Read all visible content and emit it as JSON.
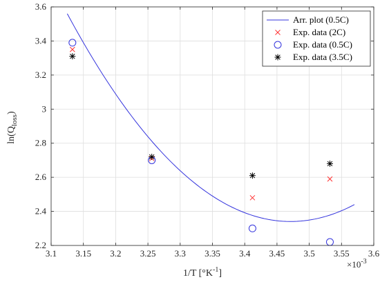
{
  "chart_data": {
    "type": "scatter",
    "xlabel": "1/T [°K",
    "xlabel_sup": "-1",
    "xlabel_end": "]",
    "ylabel": "ln(Q",
    "ylabel_sub": "loss",
    "ylabel_end": ")",
    "x_exponent_base": "×10",
    "x_exponent_power": "-3",
    "xlim": [
      3.1,
      3.6
    ],
    "ylim": [
      2.2,
      3.6
    ],
    "x_ticks": [
      3.1,
      3.15,
      3.2,
      3.25,
      3.3,
      3.35,
      3.4,
      3.45,
      3.5,
      3.55,
      3.6
    ],
    "x_tick_labels": [
      "3.1",
      "3.15",
      "3.2",
      "3.25",
      "3.3",
      "3.35",
      "3.4",
      "3.45",
      "3.5",
      "3.55",
      "3.6"
    ],
    "y_ticks": [
      2.2,
      2.4,
      2.6,
      2.8,
      3.0,
      3.2,
      3.4,
      3.6
    ],
    "y_tick_labels": [
      "2.2",
      "2.4",
      "2.6",
      "2.8",
      "3",
      "3.2",
      "3.4",
      "3.6"
    ],
    "grid": true,
    "legend_position": "top-right",
    "series": [
      {
        "name": "Arr. plot (0.5C)",
        "kind": "line",
        "color": "#3333dd",
        "quadratic_through": [
          [
            3.125,
            3.56
          ],
          [
            3.35,
            2.49
          ],
          [
            3.57,
            2.44
          ]
        ],
        "x_range": [
          3.125,
          3.57
        ]
      },
      {
        "name": "Exp. data (2C)",
        "kind": "marker",
        "marker": "x",
        "color": "#ff3333",
        "points": [
          [
            3.133,
            3.35
          ],
          [
            3.256,
            2.71
          ],
          [
            3.412,
            2.48
          ],
          [
            3.532,
            2.59
          ]
        ]
      },
      {
        "name": "Exp. data (0.5C)",
        "kind": "marker",
        "marker": "circle",
        "color": "#3333dd",
        "points": [
          [
            3.133,
            3.39
          ],
          [
            3.256,
            2.7
          ],
          [
            3.412,
            2.3
          ],
          [
            3.532,
            2.22
          ]
        ]
      },
      {
        "name": "Exp. data (3.5C)",
        "kind": "marker",
        "marker": "star",
        "color": "#000000",
        "points": [
          [
            3.133,
            3.31
          ],
          [
            3.256,
            2.72
          ],
          [
            3.412,
            2.61
          ],
          [
            3.532,
            2.68
          ]
        ]
      }
    ]
  }
}
